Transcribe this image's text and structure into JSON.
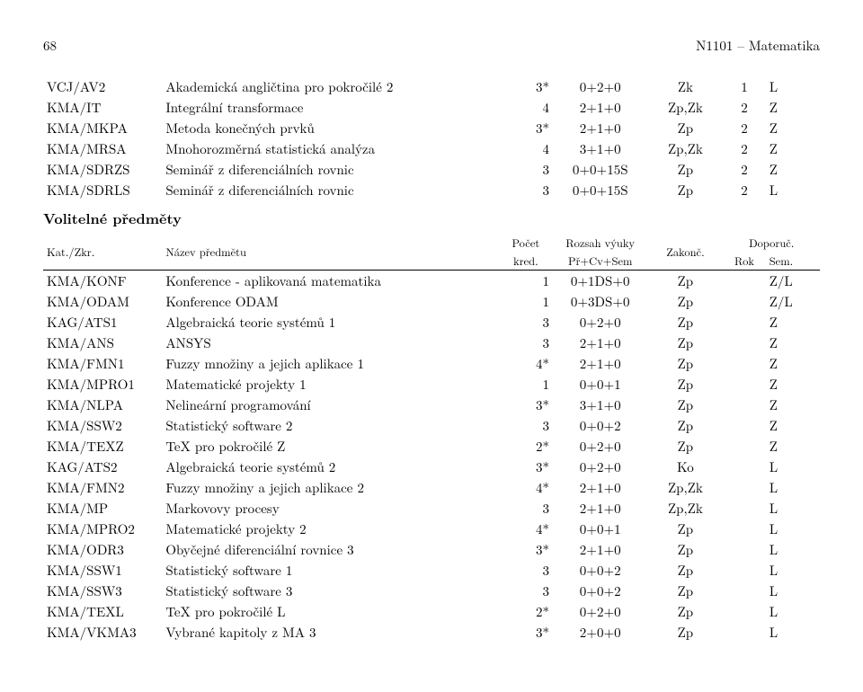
{
  "page_number": "68",
  "doc_title": "N1101 – Matematika",
  "section_title_1": "Volitelné předměty",
  "meta": {
    "kat": "Kat./Zkr.",
    "name": "Název předmětu",
    "pocet": "Počet",
    "kred": "kred.",
    "rozsah": "Rozsah výuky",
    "prcv": "Př+Cv+Sem",
    "zakon": "Zakonč.",
    "doporuc": "Doporuč.",
    "rok": "Rok",
    "sem": "Sem."
  },
  "mandatory": [
    {
      "code": "VCJ/AV2",
      "name": "Akademická angličtina pro pokročilé 2",
      "kred": "3*",
      "hours": "0+2+0",
      "zak": "Zk",
      "rok": "1",
      "sem": "L"
    },
    {
      "code": "KMA/IT",
      "name": "Integrální transformace",
      "kred": "4",
      "hours": "2+1+0",
      "zak": "Zp,Zk",
      "rok": "2",
      "sem": "Z"
    },
    {
      "code": "KMA/MKPA",
      "name": "Metoda konečných prvků",
      "kred": "3*",
      "hours": "2+1+0",
      "zak": "Zp",
      "rok": "2",
      "sem": "Z"
    },
    {
      "code": "KMA/MRSA",
      "name": "Mnohorozměrná statistická analýza",
      "kred": "4",
      "hours": "3+1+0",
      "zak": "Zp,Zk",
      "rok": "2",
      "sem": "Z"
    },
    {
      "code": "KMA/SDRZS",
      "name": "Seminář z diferenciálních rovnic",
      "kred": "3",
      "hours": "0+0+15S",
      "zak": "Zp",
      "rok": "2",
      "sem": "Z"
    },
    {
      "code": "KMA/SDRLS",
      "name": "Seminář z diferenciálních rovnic",
      "kred": "3",
      "hours": "0+0+15S",
      "zak": "Zp",
      "rok": "2",
      "sem": "L"
    }
  ],
  "optional": [
    {
      "code": "KMA/KONF",
      "name": "Konference - aplikovaná matematika",
      "kred": "1",
      "hours": "0+1DS+0",
      "zak": "Zp",
      "rok": "",
      "sem": "Z/L"
    },
    {
      "code": "KMA/ODAM",
      "name": "Konference ODAM",
      "kred": "1",
      "hours": "0+3DS+0",
      "zak": "Zp",
      "rok": "",
      "sem": "Z/L"
    },
    {
      "code": "KAG/ATS1",
      "name": "Algebraická teorie systémů 1",
      "kred": "3",
      "hours": "0+2+0",
      "zak": "Zp",
      "rok": "",
      "sem": "Z"
    },
    {
      "code": "KMA/ANS",
      "name": "ANSYS",
      "kred": "3",
      "hours": "2+1+0",
      "zak": "Zp",
      "rok": "",
      "sem": "Z"
    },
    {
      "code": "KMA/FMN1",
      "name": "Fuzzy množiny a jejich aplikace 1",
      "kred": "4*",
      "hours": "2+1+0",
      "zak": "Zp",
      "rok": "",
      "sem": "Z"
    },
    {
      "code": "KMA/MPRO1",
      "name": "Matematické projekty 1",
      "kred": "1",
      "hours": "0+0+1",
      "zak": "Zp",
      "rok": "",
      "sem": "Z"
    },
    {
      "code": "KMA/NLPA",
      "name": "Nelineární programování",
      "kred": "3*",
      "hours": "3+1+0",
      "zak": "Zp",
      "rok": "",
      "sem": "Z"
    },
    {
      "code": "KMA/SSW2",
      "name": "Statistický software 2",
      "kred": "3",
      "hours": "0+0+2",
      "zak": "Zp",
      "rok": "",
      "sem": "Z"
    },
    {
      "code": "KMA/TEXZ",
      "name": "TeX pro pokročilé Z",
      "kred": "2*",
      "hours": "0+2+0",
      "zak": "Zp",
      "rok": "",
      "sem": "Z"
    },
    {
      "code": "KAG/ATS2",
      "name": "Algebraická teorie systémů 2",
      "kred": "3*",
      "hours": "0+2+0",
      "zak": "Ko",
      "rok": "",
      "sem": "L"
    },
    {
      "code": "KMA/FMN2",
      "name": "Fuzzy množiny a jejich aplikace 2",
      "kred": "4*",
      "hours": "2+1+0",
      "zak": "Zp,Zk",
      "rok": "",
      "sem": "L"
    },
    {
      "code": "KMA/MP",
      "name": "Markovovy procesy",
      "kred": "3",
      "hours": "2+1+0",
      "zak": "Zp,Zk",
      "rok": "",
      "sem": "L"
    },
    {
      "code": "KMA/MPRO2",
      "name": "Matematické projekty 2",
      "kred": "4*",
      "hours": "0+0+1",
      "zak": "Zp",
      "rok": "",
      "sem": "L"
    },
    {
      "code": "KMA/ODR3",
      "name": "Obyčejné diferenciální rovnice 3",
      "kred": "3*",
      "hours": "2+1+0",
      "zak": "Zp",
      "rok": "",
      "sem": "L"
    },
    {
      "code": "KMA/SSW1",
      "name": "Statistický software 1",
      "kred": "3",
      "hours": "0+0+2",
      "zak": "Zp",
      "rok": "",
      "sem": "L"
    },
    {
      "code": "KMA/SSW3",
      "name": "Statistický software 3",
      "kred": "3",
      "hours": "0+0+2",
      "zak": "Zp",
      "rok": "",
      "sem": "L"
    },
    {
      "code": "KMA/TEXL",
      "name": "TeX pro pokročilé L",
      "kred": "2*",
      "hours": "0+2+0",
      "zak": "Zp",
      "rok": "",
      "sem": "L"
    },
    {
      "code": "KMA/VKMA3",
      "name": "Vybrané kapitoly z MA 3",
      "kred": "3*",
      "hours": "2+0+0",
      "zak": "Zp",
      "rok": "",
      "sem": "L"
    }
  ]
}
